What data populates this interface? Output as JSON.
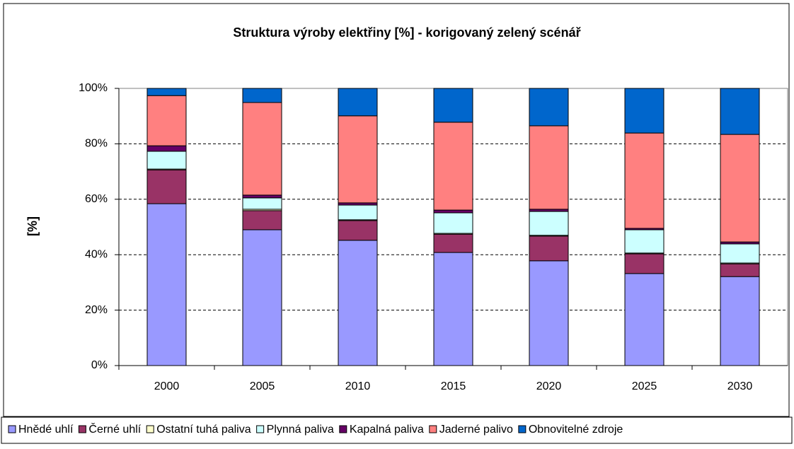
{
  "chart_data": {
    "type": "stacked_bar",
    "title": "Struktura výroby elektřiny [%] - korigovaný zelený scénář",
    "ylabel": "[%]",
    "categories": [
      "2000",
      "2005",
      "2010",
      "2015",
      "2020",
      "2025",
      "2030"
    ],
    "series": [
      {
        "name": "Hnědé uhlí",
        "color": "#9999ff",
        "values": [
          58.4,
          49.0,
          45.2,
          40.8,
          37.8,
          33.2,
          32.1
        ]
      },
      {
        "name": "Černé uhlí",
        "color": "#993366",
        "values": [
          12.2,
          6.9,
          7.1,
          6.6,
          8.9,
          7.1,
          4.6
        ]
      },
      {
        "name": "Ostatní tuhá paliva",
        "color": "#ffffcc",
        "values": [
          0.3,
          0.5,
          0.3,
          0.3,
          0.3,
          0.3,
          0.3
        ]
      },
      {
        "name": "Plynná paliva",
        "color": "#ccffff",
        "values": [
          6.4,
          4.1,
          5.3,
          7.4,
          8.6,
          8.4,
          6.9
        ]
      },
      {
        "name": "Kapalná paliva",
        "color": "#660066",
        "values": [
          2.0,
          1.0,
          0.8,
          1.0,
          0.8,
          0.5,
          0.7
        ]
      },
      {
        "name": "Jaderné palivo",
        "color": "#ff8080",
        "values": [
          18.1,
          33.4,
          31.4,
          31.7,
          30.1,
          34.4,
          38.8
        ]
      },
      {
        "name": "Obnovitelné zdroje",
        "color": "#0066cc",
        "values": [
          2.6,
          5.1,
          9.9,
          12.2,
          13.5,
          16.1,
          16.6
        ]
      }
    ],
    "ylim": [
      0,
      100
    ],
    "yticks": [
      {
        "value": 0,
        "label": "0%"
      },
      {
        "value": 20,
        "label": "20%"
      },
      {
        "value": 40,
        "label": "40%"
      },
      {
        "value": 60,
        "label": "60%"
      },
      {
        "value": 80,
        "label": "80%"
      },
      {
        "value": 100,
        "label": "100%"
      }
    ],
    "grid": true,
    "legend": "bottom"
  }
}
